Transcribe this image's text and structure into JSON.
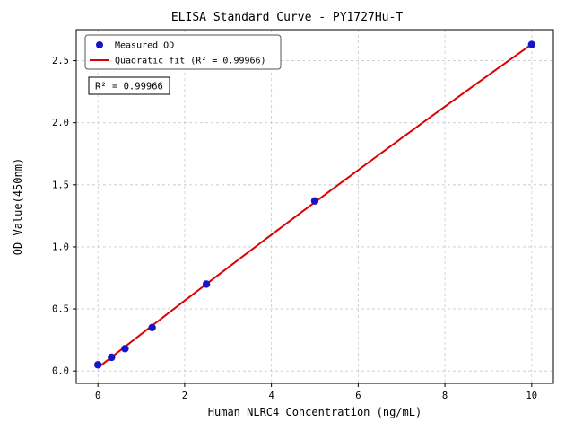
{
  "chart_data": {
    "type": "scatter",
    "title": "ELISA Standard Curve - PY1727Hu-T",
    "xlabel": "Human NLRC4 Concentration (ng/mL)",
    "ylabel": "OD Value(450nm)",
    "series": [
      {
        "name": "Measured OD",
        "x": [
          0,
          0.313,
          0.625,
          1.25,
          2.5,
          5,
          10
        ],
        "y": [
          0.05,
          0.11,
          0.18,
          0.35,
          0.7,
          1.37,
          2.63
        ]
      }
    ],
    "fit": {
      "name": "Quadratic fit (R² = 0.99966)",
      "type": "quadratic",
      "r_squared": "0.99966"
    },
    "xlim": [
      -0.5,
      10.5
    ],
    "ylim": [
      -0.1,
      2.75
    ],
    "xticks": [
      0,
      2,
      4,
      6,
      8,
      10
    ],
    "xtick_labels": [
      "0",
      "2",
      "4",
      "6",
      "8",
      "10"
    ],
    "yticks": [
      0.0,
      0.5,
      1.0,
      1.5,
      2.0,
      2.5
    ],
    "ytick_labels": [
      "0.0",
      "0.5",
      "1.0",
      "1.5",
      "2.0",
      "2.5"
    ],
    "grid": true,
    "legend": {
      "position": "upper-left",
      "entries": [
        {
          "label": "Measured OD",
          "marker": "dot-icon",
          "color": "#1414c8"
        },
        {
          "label": "Quadratic fit (R² = 0.99966)",
          "marker": "line-icon",
          "color": "#dd0000"
        }
      ]
    },
    "annotation": "R² = 0.99966",
    "colors": {
      "points": "#1414c8",
      "fit_line": "#dd0000",
      "grid": "#c8c8c8",
      "axes": "#000000",
      "background": "#ffffff"
    }
  }
}
